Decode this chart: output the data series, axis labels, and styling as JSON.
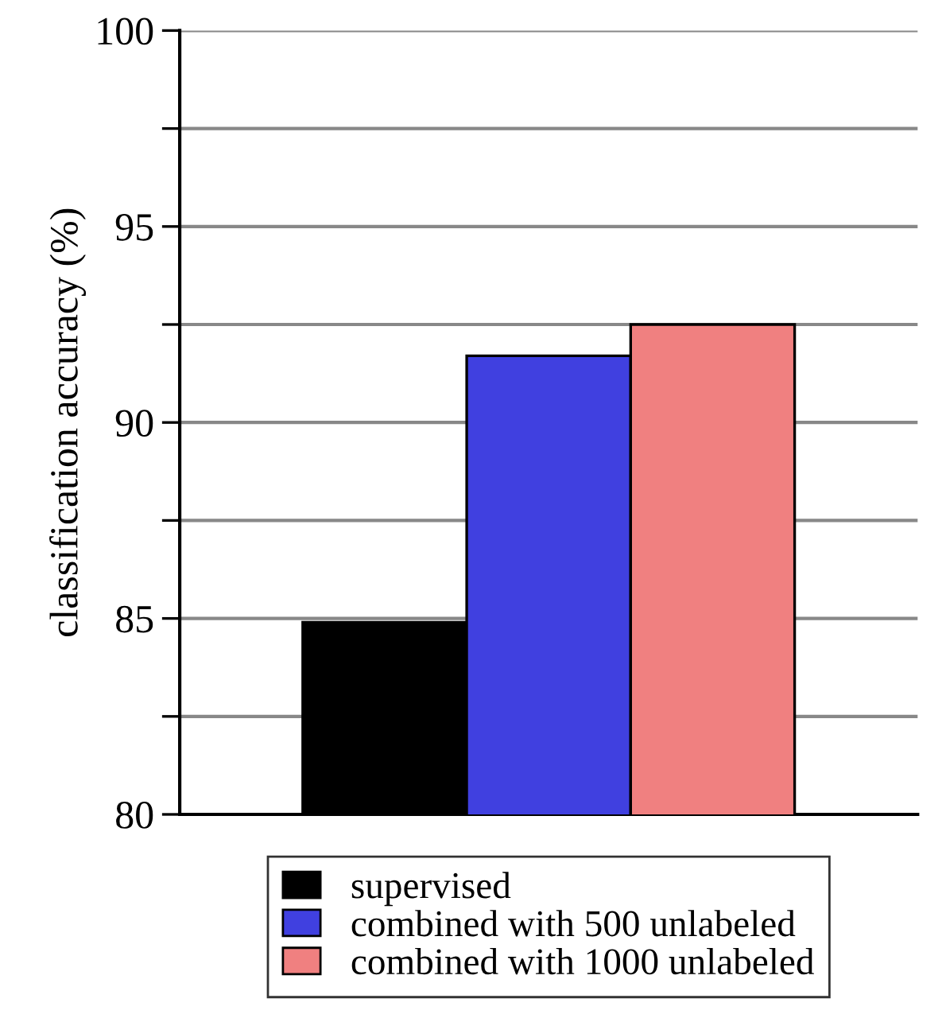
{
  "chart_data": {
    "type": "bar",
    "ylabel": "classification accuracy (%)",
    "categories": [
      null
    ],
    "series": [
      {
        "name": "supervised",
        "color": "#000000",
        "values": [
          84.9
        ]
      },
      {
        "name": "combined with 500 unlabeled",
        "color": "#4040e0",
        "values": [
          91.7
        ]
      },
      {
        "name": "combined with 1000 unlabeled",
        "color": "#f08080",
        "values": [
          92.5
        ]
      }
    ],
    "ylim": [
      80,
      100
    ],
    "yticks": [
      80,
      {
        "value": 82.5,
        "label": null
      },
      85,
      {
        "value": 87.5,
        "label": null
      },
      90,
      {
        "value": 92.5,
        "label": null
      },
      95,
      {
        "value": 97.5,
        "label": null
      },
      100
    ],
    "grid": "y",
    "legend": "bottom"
  }
}
